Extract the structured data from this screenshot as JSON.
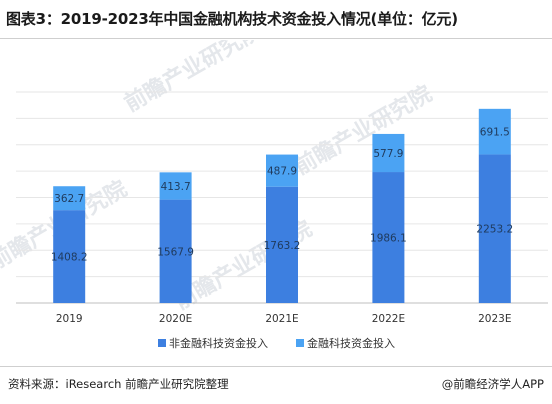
{
  "page": {
    "title": "图表3：2019-2023年中国金融机构技术资金投入情况(单位：亿元)",
    "source": "资料来源：iResearch 前瞻产业研究院整理",
    "brand": "@前瞻经济学人APP",
    "watermark": "前瞻产业研究院"
  },
  "colors": {
    "non_tech": "#3d7fe0",
    "tech": "#4ba3f3",
    "grid": "#e6e6e6",
    "axis_text": "#333333"
  },
  "chart_data": {
    "type": "bar",
    "stacked": true,
    "categories": [
      "2019",
      "2020E",
      "2021E",
      "2022E",
      "2023E"
    ],
    "series": [
      {
        "name": "非金融科技资金投入",
        "values": [
          1408.2,
          1567.9,
          1763.2,
          1986.1,
          2253.2
        ]
      },
      {
        "name": "金融科技资金投入",
        "values": [
          362.7,
          413.7,
          487.9,
          577.9,
          691.5
        ]
      }
    ],
    "ylim": [
      0,
      3200
    ],
    "grid": true,
    "legend_position": "bottom-center",
    "data_labels": true
  }
}
